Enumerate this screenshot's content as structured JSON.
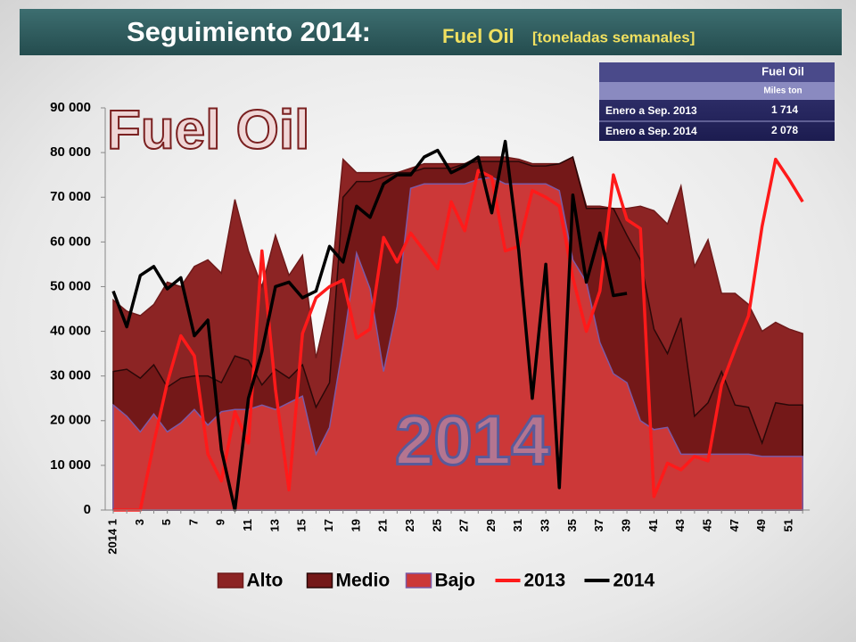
{
  "chart_data": {
    "type": "line",
    "title": "Seguimiento 2014:",
    "subtitle": "Fuel Oil",
    "unit": "[toneladas semanales]",
    "watermarks": [
      "Fuel Oil",
      "2014"
    ],
    "categories": [
      "2014 1",
      null,
      "3",
      null,
      "5",
      null,
      "7",
      null,
      "9",
      null,
      "11",
      null,
      "13",
      null,
      "15",
      null,
      "17",
      null,
      "19",
      null,
      "21",
      null,
      "23",
      null,
      "25",
      null,
      "27",
      null,
      "29",
      null,
      "31",
      null,
      "33",
      null,
      "35",
      null,
      "37",
      null,
      "39",
      null,
      "41",
      null,
      "43",
      null,
      "45",
      null,
      "47",
      null,
      "49",
      null,
      "51",
      null
    ],
    "ylim": [
      0,
      90000
    ],
    "yticks": [
      0,
      {
        "value": 10000,
        "label": "10 000"
      },
      {
        "value": 20000,
        "label": "20 000"
      },
      {
        "value": 30000,
        "label": "30 000"
      },
      {
        "value": 40000,
        "label": "40 000"
      },
      {
        "value": 50000,
        "label": "50 000"
      },
      {
        "value": 60000,
        "label": "60 000"
      },
      {
        "value": 70000,
        "label": "70 000"
      },
      {
        "value": 80000,
        "label": "80 000"
      },
      {
        "value": 90000,
        "label": "90 000"
      }
    ],
    "grid": false,
    "legend": "bottom",
    "series": [
      {
        "name": "Alto",
        "type": "area",
        "color": "#8c2424",
        "stroke": "#6e1a1a",
        "values": [
          47000,
          44500,
          43500,
          46000,
          51000,
          50000,
          54500,
          56000,
          53000,
          69500,
          58000,
          50000,
          61500,
          52500,
          57000,
          34000,
          47000,
          78500,
          75500,
          75500,
          75500,
          75500,
          76500,
          77500,
          77500,
          77500,
          77500,
          79000,
          79000,
          79000,
          78500,
          77500,
          77500,
          77500,
          79000,
          68000,
          68000,
          67500,
          67500,
          68000,
          67000,
          64000,
          72500,
          54500,
          60500,
          48500,
          48500,
          46000,
          40000,
          42000,
          40500,
          39500
        ]
      },
      {
        "name": "Medio",
        "type": "area",
        "color": "#741818",
        "stroke": "#2a0808",
        "values": [
          31000,
          31500,
          29500,
          32500,
          27500,
          29500,
          30000,
          30000,
          28500,
          34500,
          33500,
          28000,
          31500,
          29500,
          32500,
          23000,
          28500,
          70000,
          73500,
          73500,
          74500,
          75500,
          75500,
          76500,
          76500,
          76500,
          77500,
          78000,
          78000,
          78000,
          78000,
          77000,
          77000,
          77500,
          79000,
          67500,
          67500,
          67500,
          61500,
          56000,
          40500,
          35000,
          43000,
          21000,
          24000,
          31000,
          23500,
          23000,
          15000,
          24000,
          23500,
          23500
        ]
      },
      {
        "name": "Bajo",
        "type": "area",
        "color": "#cc3838",
        "stroke": "#7b5aa6",
        "values": [
          23500,
          21000,
          17500,
          21500,
          17500,
          19500,
          22500,
          19000,
          22000,
          22500,
          22500,
          23500,
          22500,
          24000,
          25500,
          12500,
          18500,
          37000,
          57500,
          49500,
          31000,
          45500,
          72000,
          73000,
          73000,
          73000,
          73000,
          74000,
          74500,
          73000,
          73000,
          73000,
          73000,
          71500,
          56000,
          51000,
          37500,
          30500,
          28500,
          20000,
          18000,
          18500,
          12500,
          12500,
          12500,
          12500,
          12500,
          12500,
          12000,
          12000,
          12000,
          12000
        ]
      },
      {
        "name": "2013",
        "type": "line",
        "color": "#ff1a1a",
        "values": [
          0,
          0,
          0,
          15000,
          28500,
          39000,
          34500,
          12500,
          6500,
          22000,
          15000,
          58000,
          27000,
          4500,
          39500,
          47500,
          50000,
          51500,
          38500,
          40500,
          61000,
          55500,
          62000,
          58000,
          54000,
          69000,
          62500,
          76000,
          74500,
          58000,
          59000,
          71500,
          70000,
          68000,
          52000,
          40000,
          49000,
          75000,
          65000,
          63000,
          3000,
          10500,
          9000,
          12000,
          11000,
          28000,
          36000,
          43500,
          63500,
          78500,
          74000,
          69000
        ]
      },
      {
        "name": "2014",
        "type": "line",
        "color": "#000000",
        "values": [
          49000,
          41000,
          52500,
          54500,
          49500,
          52000,
          39000,
          42500,
          13500,
          0,
          25000,
          35500,
          50000,
          51000,
          47500,
          49000,
          59000,
          55500,
          68000,
          65500,
          73000,
          75000,
          75000,
          79000,
          80500,
          75500,
          77000,
          79000,
          66500,
          82500,
          58000,
          25000,
          55000,
          5000,
          70500,
          51000,
          62000,
          48000,
          48500,
          null,
          null,
          null,
          null,
          null,
          null,
          null,
          null,
          null,
          null,
          null,
          null,
          null
        ]
      }
    ]
  },
  "summary_table": {
    "header": "Fuel Oil",
    "subheader": "Miles ton",
    "rows": [
      [
        "Enero a Sep. 2013",
        "1 714"
      ],
      [
        "Enero a Sep. 2014",
        "2 078"
      ]
    ]
  }
}
